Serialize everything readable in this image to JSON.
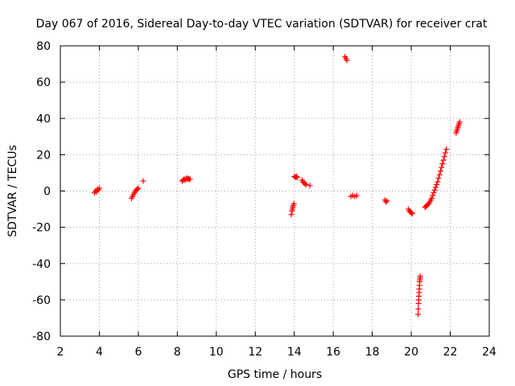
{
  "chart_data": {
    "type": "scatter",
    "title": "Day 067 of 2016, Sidereal Day-to-day VTEC variation (SDTVAR) for receiver crat",
    "xlabel": "GPS time / hours",
    "ylabel": "SDTVAR / TECUs",
    "xlim": [
      2,
      24
    ],
    "ylim": [
      -80,
      80
    ],
    "xticks": [
      2,
      4,
      6,
      8,
      10,
      12,
      14,
      16,
      18,
      20,
      22,
      24
    ],
    "yticks": [
      -80,
      -60,
      -40,
      -20,
      0,
      20,
      40,
      60,
      80
    ],
    "grid": true,
    "marker": "plus",
    "series": [
      {
        "name": "SDTVAR",
        "color": "#ff0000",
        "segments": [
          {
            "x": [
              3.75,
              3.8,
              3.85,
              3.9,
              3.95,
              4.0
            ],
            "y": [
              -1,
              0,
              -0.5,
              1,
              0.5,
              1.5
            ]
          },
          {
            "x": [
              5.65,
              5.7,
              5.75,
              5.8,
              5.85,
              5.9,
              5.95,
              6.0
            ],
            "y": [
              -4,
              -3,
              -2,
              -1,
              0,
              0.5,
              1,
              1.5
            ]
          },
          {
            "x": [
              6.25
            ],
            "y": [
              5.5
            ]
          },
          {
            "x": [
              8.25,
              8.3,
              8.35,
              8.4,
              8.45,
              8.5,
              8.55,
              8.6,
              8.65
            ],
            "y": [
              5.5,
              6,
              6.5,
              6,
              7,
              6.5,
              7,
              6.5,
              6.5
            ]
          },
          {
            "x": [
              13.85,
              13.88,
              13.9,
              13.92,
              13.95,
              13.98
            ],
            "y": [
              -13,
              -11,
              -10,
              -9,
              -8,
              -7
            ]
          },
          {
            "x": [
              14.0,
              14.05,
              14.1,
              14.15
            ],
            "y": [
              8,
              7.5,
              8,
              7.5
            ]
          },
          {
            "x": [
              14.4,
              14.45,
              14.5,
              14.55,
              14.6
            ],
            "y": [
              6,
              5,
              4.5,
              4,
              3.5
            ]
          },
          {
            "x": [
              14.8
            ],
            "y": [
              3
            ]
          },
          {
            "x": [
              16.6,
              16.65,
              16.7
            ],
            "y": [
              74,
              73,
              72
            ]
          },
          {
            "x": [
              16.9,
              17.0,
              17.1,
              17.2
            ],
            "y": [
              -3,
              -2.5,
              -3,
              -2.5
            ]
          },
          {
            "x": [
              18.65,
              18.7,
              18.75
            ],
            "y": [
              -5,
              -6,
              -5.5
            ]
          },
          {
            "x": [
              19.85,
              19.9,
              19.95,
              20.0,
              20.05
            ],
            "y": [
              -10,
              -11,
              -11.5,
              -12,
              -12.5
            ]
          },
          {
            "x": [
              20.35,
              20.36,
              20.37,
              20.38,
              20.39,
              20.4,
              20.41,
              20.42,
              20.43,
              20.44,
              20.45,
              20.46
            ],
            "y": [
              -68,
              -65,
              -62,
              -60,
              -58,
              -56,
              -54,
              -52,
              -50,
              -49,
              -48,
              -47
            ]
          },
          {
            "x": [
              20.7,
              20.75,
              20.8,
              20.85,
              20.9,
              20.95,
              21.0,
              21.05,
              21.1,
              21.15,
              21.2,
              21.25,
              21.3,
              21.35,
              21.4,
              21.45,
              21.5,
              21.55,
              21.6,
              21.65,
              21.7,
              21.75,
              21.8
            ],
            "y": [
              -9,
              -8.5,
              -8,
              -7.5,
              -7,
              -6,
              -5,
              -4,
              -2.5,
              -1,
              0.5,
              2,
              3.5,
              5,
              7,
              9,
              11,
              13,
              15,
              17,
              19,
              21,
              23
            ]
          },
          {
            "x": [
              22.3,
              22.33,
              22.36,
              22.39,
              22.42,
              22.45,
              22.48
            ],
            "y": [
              32,
              33,
              34,
              35,
              36,
              37,
              38
            ]
          }
        ]
      }
    ]
  }
}
